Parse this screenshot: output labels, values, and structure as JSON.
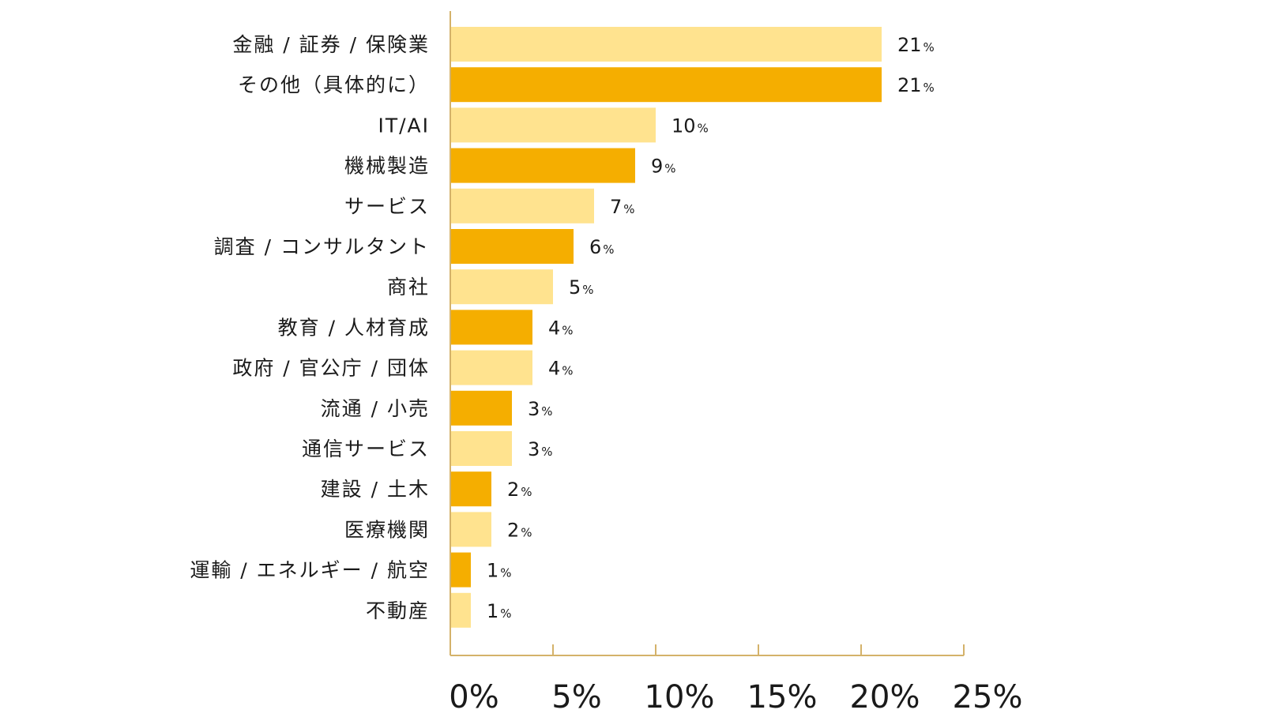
{
  "chart_data": {
    "type": "bar",
    "orientation": "horizontal",
    "title": "",
    "xlabel": "",
    "ylabel": "",
    "categories": [
      "金融 / 証券 / 保険業",
      "その他（具体的に）",
      "IT/AI",
      "機械製造",
      "サービス",
      "調査 / コンサルタント",
      "商社",
      "教育 / 人材育成",
      "政府 / 官公庁 / 団体",
      "流通 / 小売",
      "通信サービス",
      "建設 / 土木",
      "医療機関",
      "運輸 / エネルギー / 航空",
      "不動産"
    ],
    "values": [
      21,
      21,
      10,
      9,
      7,
      6,
      5,
      4,
      4,
      3,
      3,
      2,
      2,
      1,
      1
    ],
    "value_labels": [
      "21",
      "21",
      "10",
      "9",
      "7",
      "6",
      "5",
      "4",
      "4",
      "3",
      "3",
      "2",
      "2",
      "1",
      "1"
    ],
    "value_unit": "%",
    "xlim": [
      0,
      25
    ],
    "xticks": [
      0,
      5,
      10,
      15,
      20,
      25
    ],
    "xtick_labels": [
      "0%",
      "5%",
      "10%",
      "15%",
      "20%",
      "25%"
    ],
    "grid": false,
    "legend": "none",
    "colors": {
      "light": "#FFE38F",
      "dark": "#F5AE00",
      "axis": "#D4B26A"
    },
    "color_pattern": [
      "light",
      "dark"
    ]
  }
}
